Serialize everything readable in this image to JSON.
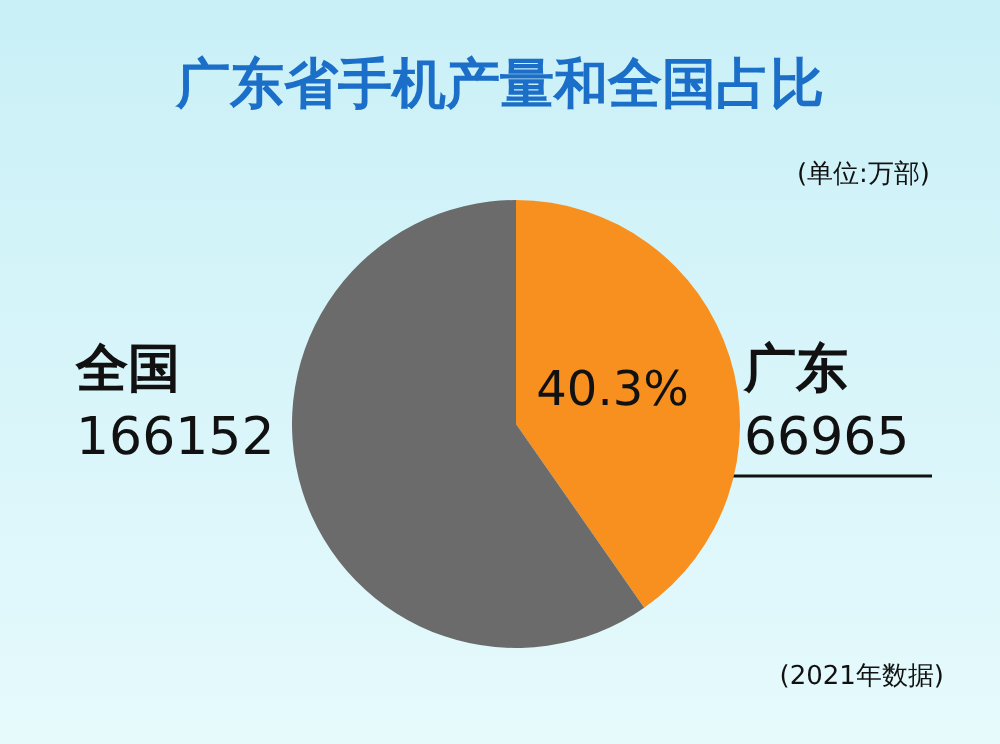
{
  "chart_data": {
    "type": "pie",
    "title": "广东省手机产量和全国占比",
    "subtitle": "(单位:万部)",
    "categories": [
      "广东",
      "全国"
    ],
    "values": [
      40.3,
      59.7
    ],
    "colors": [
      "#f7901e",
      "#6b6b6b"
    ],
    "value_labels": [
      "40.3%",
      null
    ],
    "annotations": [
      "66965",
      "166152",
      "(2021年数据)"
    ],
    "legend": false
  }
}
